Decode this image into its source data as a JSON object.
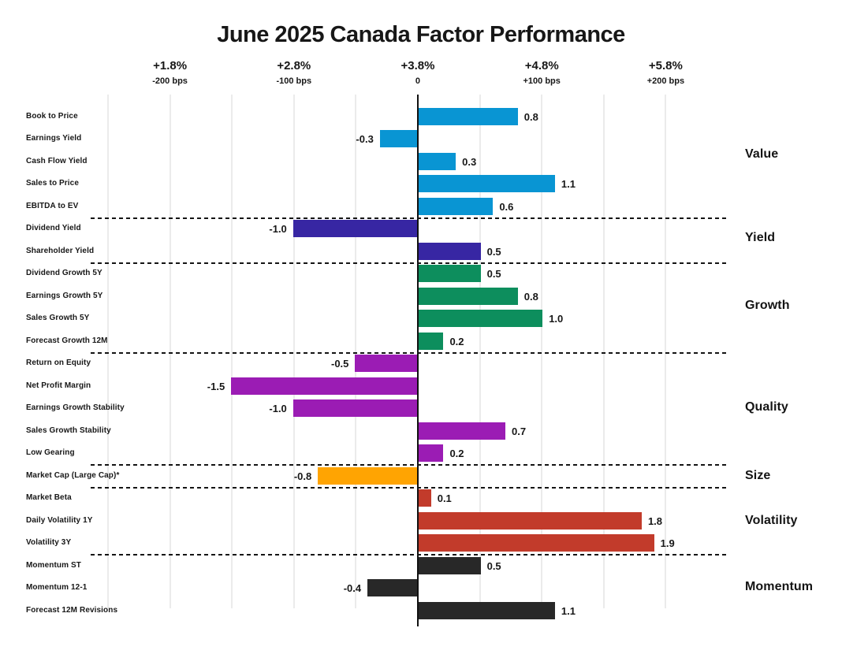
{
  "title": "June 2025 Canada Factor Performance",
  "axis": {
    "ticks": [
      {
        "pct": "+1.8%",
        "bps": "-200 bps",
        "value": -2
      },
      {
        "pct": "+2.8%",
        "bps": "-100 bps",
        "value": -1
      },
      {
        "pct": "+3.8%",
        "bps": "0",
        "value": 0
      },
      {
        "pct": "+4.8%",
        "bps": "+100 bps",
        "value": 1
      },
      {
        "pct": "+5.8%",
        "bps": "+200 bps",
        "value": 2
      }
    ]
  },
  "chart_data": {
    "type": "bar",
    "orientation": "horizontal",
    "title": "June 2025 Canada Factor Performance",
    "x_axis_note": "top axis shows absolute return (+1.8% to +5.8%) and relative bps (-200 to +200); bars are in percentage points relative to 0",
    "xlim": [
      -2.5,
      2.0
    ],
    "gridline_step": 0.5,
    "grid": true,
    "legend_position": "right-group-labels",
    "groups": [
      {
        "name": "Value",
        "color": "#0995D3",
        "factors": [
          {
            "label": "Book to Price",
            "value": 0.8,
            "value_label": "0.8"
          },
          {
            "label": "Earnings Yield",
            "value": -0.3,
            "value_label": "-0.3"
          },
          {
            "label": "Cash Flow Yield",
            "value": 0.3,
            "value_label": "0.3"
          },
          {
            "label": "Sales to Price",
            "value": 1.1,
            "value_label": "1.1"
          },
          {
            "label": "EBITDA to EV",
            "value": 0.6,
            "value_label": "0.6"
          }
        ]
      },
      {
        "name": "Yield",
        "color": "#3726A3",
        "factors": [
          {
            "label": "Dividend Yield",
            "value": -1.0,
            "value_label": "-1.0"
          },
          {
            "label": "Shareholder Yield",
            "value": 0.5,
            "value_label": "0.5"
          }
        ]
      },
      {
        "name": "Growth",
        "color": "#0D8E5D",
        "factors": [
          {
            "label": "Dividend Growth 5Y",
            "value": 0.5,
            "value_label": "0.5"
          },
          {
            "label": "Earnings Growth 5Y",
            "value": 0.8,
            "value_label": "0.8"
          },
          {
            "label": "Sales Growth 5Y",
            "value": 1.0,
            "value_label": "1.0"
          },
          {
            "label": "Forecast Growth 12M",
            "value": 0.2,
            "value_label": "0.2"
          }
        ]
      },
      {
        "name": "Quality",
        "color": "#9B1CB4",
        "factors": [
          {
            "label": "Return on Equity",
            "value": -0.5,
            "value_label": "-0.5"
          },
          {
            "label": "Net Profit Margin",
            "value": -1.5,
            "value_label": "-1.5"
          },
          {
            "label": "Earnings Growth Stability",
            "value": -1.0,
            "value_label": "-1.0"
          },
          {
            "label": "Sales Growth Stability",
            "value": 0.7,
            "value_label": "0.7"
          },
          {
            "label": "Low Gearing",
            "value": 0.2,
            "value_label": "0.2"
          }
        ]
      },
      {
        "name": "Size",
        "color": "#FFA402",
        "factors": [
          {
            "label": "Market Cap (Large Cap)*",
            "value": -0.8,
            "value_label": "-0.8"
          }
        ]
      },
      {
        "name": "Volatility",
        "color": "#C23B2B",
        "factors": [
          {
            "label": "Market Beta",
            "value": 0.1,
            "value_label": "0.1"
          },
          {
            "label": "Daily Volatility 1Y",
            "value": 1.8,
            "value_label": "1.8"
          },
          {
            "label": "Volatility 3Y",
            "value": 1.9,
            "value_label": "1.9"
          }
        ]
      },
      {
        "name": "Momentum",
        "color": "#282828",
        "factors": [
          {
            "label": "Momentum ST",
            "value": 0.5,
            "value_label": "0.5"
          },
          {
            "label": "Momentum 12-1",
            "value": -0.4,
            "value_label": "-0.4"
          },
          {
            "label": "Forecast 12M Revisions",
            "value": 1.1,
            "value_label": "1.1"
          }
        ]
      }
    ]
  }
}
